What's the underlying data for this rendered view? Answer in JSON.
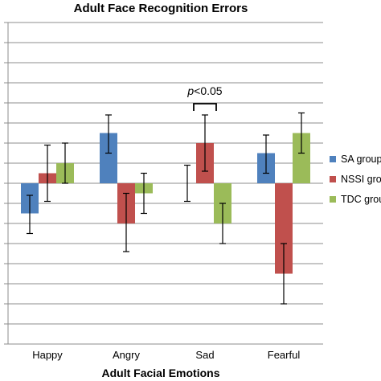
{
  "chart_data": {
    "type": "bar",
    "title": "Adult Face Recognition Errors",
    "xlabel": "Adult Facial Emotions",
    "ylabel": "",
    "categories": [
      "Happy",
      "Angry",
      "Sad",
      "Fearful"
    ],
    "ylim": [
      -8,
      8
    ],
    "grid": true,
    "legend_position": "right",
    "series": [
      {
        "name": "SA group",
        "color": "#4f81bd",
        "values": [
          -1.5,
          2.5,
          0,
          1.5
        ],
        "err_low": [
          -2.5,
          1.5,
          -0.9,
          0.5
        ],
        "err_high": [
          -0.6,
          3.4,
          0.9,
          2.4
        ]
      },
      {
        "name": "NSSI group",
        "color": "#c0504d",
        "values": [
          0.5,
          -2,
          2,
          -4.5
        ],
        "err_low": [
          -0.9,
          -3.4,
          0.6,
          -6.0
        ],
        "err_high": [
          1.9,
          -0.5,
          3.4,
          -3.0
        ]
      },
      {
        "name": "TDC group",
        "color": "#9bbb59",
        "values": [
          1,
          -0.5,
          -2,
          2.5
        ],
        "err_low": [
          0,
          -1.5,
          -3.0,
          1.5
        ],
        "err_high": [
          2,
          0.5,
          -1.0,
          3.5
        ]
      }
    ],
    "annotations": [
      {
        "category": "Sad",
        "p_label": "p",
        "rest": "<0.05"
      }
    ]
  }
}
